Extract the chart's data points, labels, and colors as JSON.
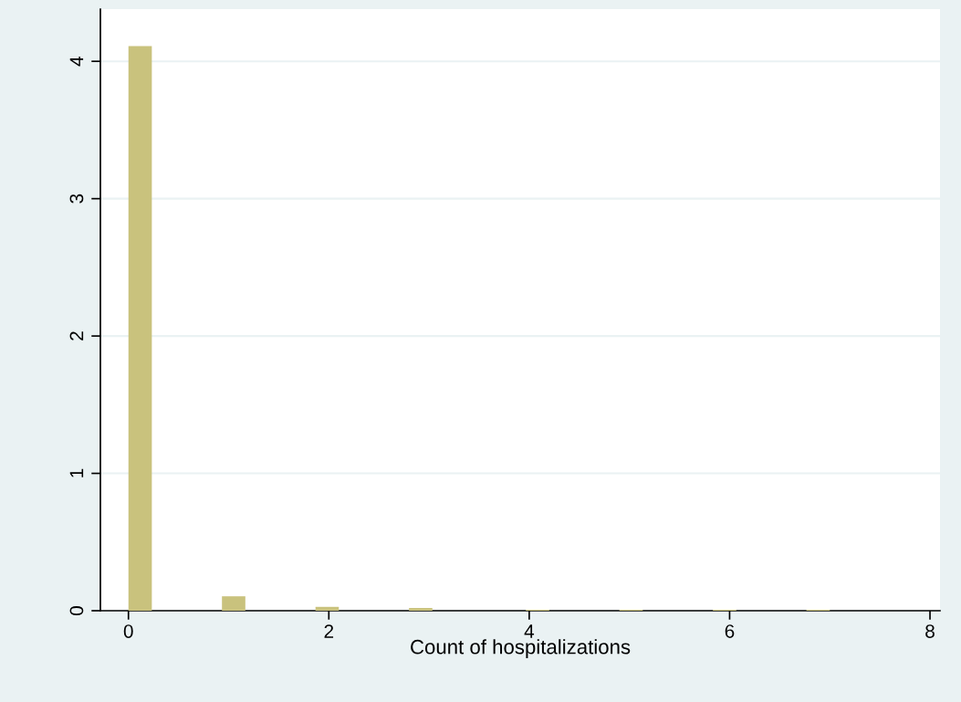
{
  "chart_data": {
    "type": "histogram",
    "xlabel": "Count of hospitalizations",
    "bins": [
      0,
      0.2333,
      0.4667,
      0.7,
      0.9333,
      1.1667,
      1.4,
      1.6333,
      1.8667,
      2.1,
      2.3333,
      2.5667,
      2.8,
      3.0333,
      3.2667,
      3.5,
      3.7333,
      3.9667,
      4.2,
      4.4333,
      4.6667,
      4.9,
      5.1333,
      5.3667,
      5.6,
      5.8333,
      6.0667,
      6.3,
      6.5333,
      6.7667,
      7
    ],
    "values": [
      4.11,
      0,
      0,
      0,
      0.105,
      0,
      0,
      0,
      0.028,
      0,
      0,
      0,
      0.02,
      0,
      0,
      0,
      0,
      0.007,
      0,
      0,
      0,
      0.007,
      0,
      0,
      0,
      0.007,
      0,
      0,
      0,
      0.007
    ],
    "color": "#c9c27d",
    "xlim": [
      -0.28,
      8.1
    ],
    "xticks": [
      0,
      2,
      4,
      6,
      8
    ],
    "ylim": [
      0,
      4.38
    ],
    "yticks": [
      0,
      1,
      2,
      3,
      4
    ],
    "grid": "y"
  }
}
